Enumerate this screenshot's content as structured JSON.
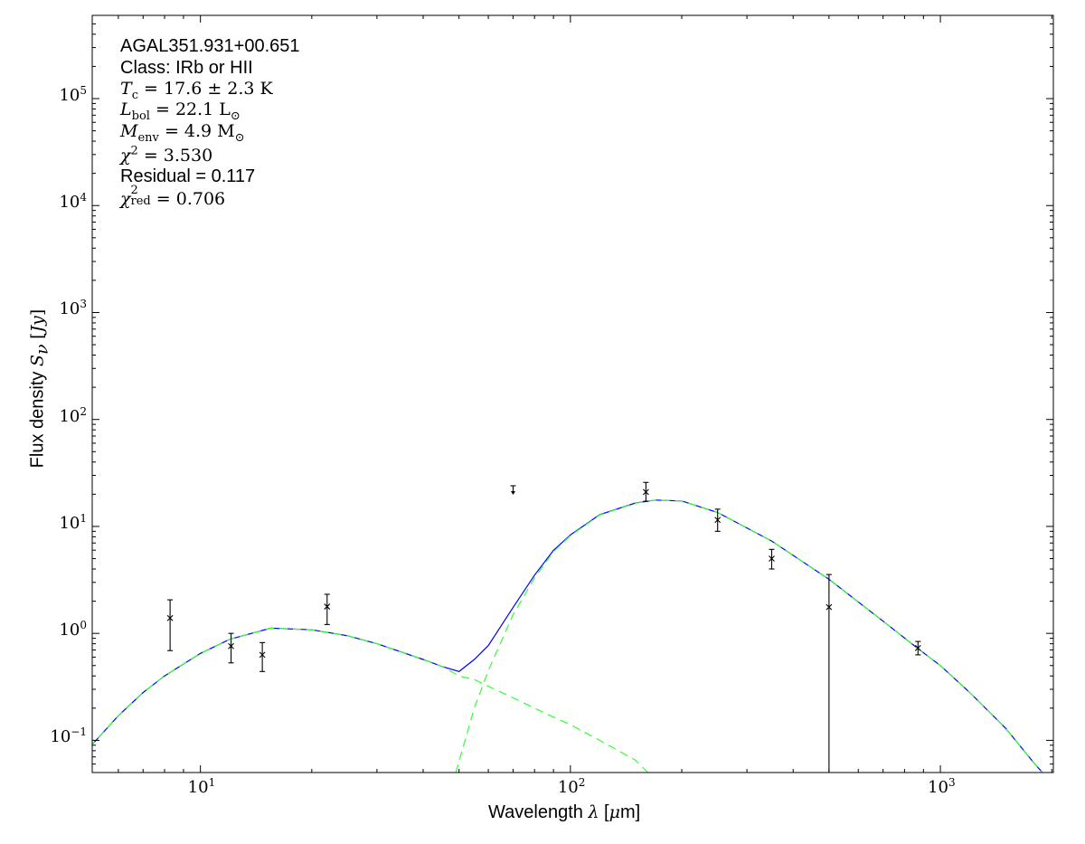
{
  "chart_data": {
    "type": "scatter",
    "xlabel": {
      "prefix": "Wavelength",
      "symbol": "λ",
      "unit_open": "[",
      "unit_mu": "μ",
      "unit_rest": "m]"
    },
    "ylabel": {
      "prefix": "Flux density",
      "symbol": "S",
      "sub": "ν",
      "unit": "Jy"
    },
    "xscale": "log",
    "yscale": "log",
    "xlim": [
      5.1,
      2020
    ],
    "ylim": [
      0.05,
      600000
    ],
    "grid": false,
    "x_ticks": [
      {
        "base": "10",
        "exp": "1",
        "value": 10
      },
      {
        "base": "10",
        "exp": "2",
        "value": 100
      },
      {
        "base": "10",
        "exp": "3",
        "value": 1000
      }
    ],
    "y_ticks": [
      {
        "base": "10",
        "exp": "−1",
        "value": 0.1
      },
      {
        "base": "10",
        "exp": "0",
        "value": 1
      },
      {
        "base": "10",
        "exp": "1",
        "value": 10
      },
      {
        "base": "10",
        "exp": "2",
        "value": 100
      },
      {
        "base": "10",
        "exp": "3",
        "value": 1000
      },
      {
        "base": "10",
        "exp": "4",
        "value": 10000
      },
      {
        "base": "10",
        "exp": "5",
        "value": 100000
      }
    ],
    "annotation": {
      "source": "AGAL351.931+00.651",
      "class": "Class: IRb or HII",
      "tc": {
        "symbol": "T",
        "sub": "c",
        "value": "= 17.6 ± 2.3 K"
      },
      "lbol": {
        "symbol": "L",
        "sub": "bol",
        "value": "= 22.1 L",
        "unit_sub": "⊙"
      },
      "menv": {
        "symbol": "M",
        "sub": "env",
        "value": "= 4.9 M",
        "unit_sub": "⊙"
      },
      "chi2": {
        "symbol": "χ",
        "sup": "2",
        "value": "= 3.530"
      },
      "residual": "Residual = 0.117",
      "chi2red": {
        "symbol": "χ",
        "sup": "2",
        "sub": "red",
        "value": "= 0.706"
      }
    },
    "points": [
      {
        "x": 8.28,
        "y": 1.39,
        "lo": 0.69,
        "hi": 2.06
      },
      {
        "x": 12.1,
        "y": 0.76,
        "lo": 0.53,
        "hi": 1.0
      },
      {
        "x": 14.7,
        "y": 0.63,
        "lo": 0.44,
        "hi": 0.82
      },
      {
        "x": 22.0,
        "y": 1.78,
        "lo": 1.21,
        "hi": 2.32
      },
      {
        "x": 160,
        "y": 21.0,
        "lo": 17.2,
        "hi": 25.8
      },
      {
        "x": 250,
        "y": 11.5,
        "lo": 9.0,
        "hi": 14.5
      },
      {
        "x": 350,
        "y": 5.0,
        "lo": 4.0,
        "hi": 6.1
      },
      {
        "x": 500,
        "y": 1.76,
        "lo": 0.01,
        "hi": 3.55
      },
      {
        "x": 870,
        "y": 0.73,
        "lo": 0.63,
        "hi": 0.84
      }
    ],
    "upper_limits": [
      {
        "x": 70,
        "y": 24.0
      }
    ],
    "series": [
      {
        "role": "total model",
        "color": "#0000ff",
        "style": "solid",
        "x": [
          5,
          6,
          7,
          8,
          10,
          12,
          15.5,
          20,
          25,
          30,
          40,
          45,
          50,
          55,
          60,
          70,
          80,
          90,
          100,
          120,
          150,
          170,
          200,
          250,
          350,
          500,
          700,
          870,
          1000,
          1200,
          1500,
          1800,
          2000
        ],
        "y": [
          0.085,
          0.17,
          0.28,
          0.4,
          0.65,
          0.88,
          1.12,
          1.08,
          0.95,
          0.8,
          0.57,
          0.49,
          0.44,
          0.57,
          0.77,
          1.75,
          3.5,
          5.97,
          8.34,
          12.9,
          16.57,
          17.65,
          17.3,
          13.5,
          7.3,
          3.2,
          1.3,
          0.72,
          0.5,
          0.28,
          0.13,
          0.06,
          0.04
        ]
      },
      {
        "role": "warm component",
        "color": "#33ff33",
        "style": "dashed",
        "x": [
          5,
          6,
          7,
          8,
          10,
          12,
          15.5,
          20,
          25,
          30,
          40,
          45,
          50,
          55,
          60,
          70,
          80,
          90,
          100,
          120,
          150,
          162
        ],
        "y": [
          0.085,
          0.17,
          0.28,
          0.4,
          0.65,
          0.88,
          1.12,
          1.08,
          0.95,
          0.8,
          0.57,
          0.49,
          0.4,
          0.37,
          0.32,
          0.25,
          0.2,
          0.165,
          0.14,
          0.1,
          0.065,
          0.05
        ]
      },
      {
        "role": "cold component",
        "color": "#33ff33",
        "style": "dashed",
        "x": [
          49,
          55,
          60,
          70,
          80,
          90,
          100,
          120,
          150,
          170,
          200,
          250,
          350,
          500,
          700,
          870,
          1000,
          1200,
          1500,
          1800,
          2000
        ],
        "y": [
          0.05,
          0.2,
          0.45,
          1.5,
          3.3,
          5.8,
          8.2,
          12.8,
          16.5,
          17.6,
          17.3,
          13.5,
          7.3,
          3.2,
          1.3,
          0.72,
          0.5,
          0.28,
          0.13,
          0.06,
          0.04
        ]
      }
    ]
  }
}
